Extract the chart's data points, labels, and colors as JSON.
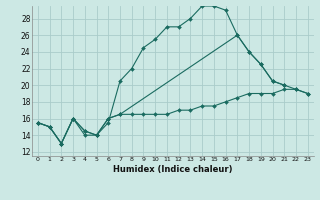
{
  "background_color": "#cce8e4",
  "grid_color": "#aaccca",
  "line_color": "#1a6b60",
  "xlabel": "Humidex (Indice chaleur)",
  "ylim": [
    11.5,
    29.5
  ],
  "xlim": [
    -0.5,
    23.5
  ],
  "yticks": [
    12,
    14,
    16,
    18,
    20,
    22,
    24,
    26,
    28
  ],
  "xticks": [
    0,
    1,
    2,
    3,
    4,
    5,
    6,
    7,
    8,
    9,
    10,
    11,
    12,
    13,
    14,
    15,
    16,
    17,
    18,
    19,
    20,
    21,
    22,
    23
  ],
  "series": [
    {
      "x": [
        0,
        1,
        2,
        3,
        4,
        5,
        6,
        7,
        8,
        9,
        10,
        11,
        12,
        13,
        14,
        15,
        16,
        17,
        18,
        19,
        20,
        21,
        22,
        23
      ],
      "y": [
        15.5,
        15.0,
        13.0,
        16.0,
        14.5,
        14.0,
        16.0,
        16.5,
        16.5,
        16.5,
        16.5,
        16.5,
        17.0,
        17.0,
        17.5,
        17.5,
        18.0,
        18.5,
        19.0,
        19.0,
        19.0,
        19.5,
        19.5,
        19.0
      ]
    },
    {
      "x": [
        0,
        1,
        2,
        3,
        4,
        5,
        6,
        7,
        8,
        9,
        10,
        11,
        12,
        13,
        14,
        15,
        16,
        17,
        18,
        19,
        20,
        21
      ],
      "y": [
        15.5,
        15.0,
        13.0,
        16.0,
        14.0,
        14.0,
        15.5,
        20.5,
        22.0,
        24.5,
        25.5,
        27.0,
        27.0,
        28.0,
        29.5,
        29.5,
        29.0,
        26.0,
        24.0,
        22.5,
        20.5,
        20.0
      ]
    },
    {
      "x": [
        0,
        1,
        2,
        3,
        4,
        5,
        6,
        7,
        17,
        18,
        19,
        20,
        21,
        22,
        23
      ],
      "y": [
        15.5,
        15.0,
        13.0,
        16.0,
        14.5,
        14.0,
        16.0,
        16.5,
        26.0,
        24.0,
        22.5,
        20.5,
        20.0,
        19.5,
        19.0
      ]
    }
  ]
}
